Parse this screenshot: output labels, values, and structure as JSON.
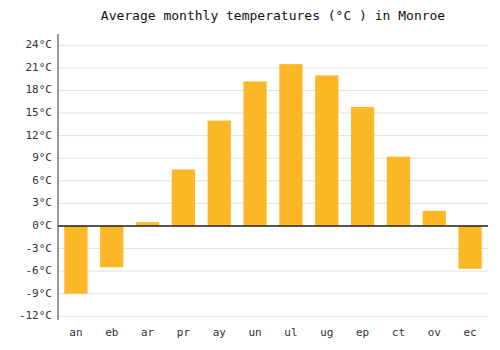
{
  "chart_data": {
    "type": "bar",
    "title": "Average monthly temperatures (°C ) in Monroe",
    "categories": [
      "an",
      "eb",
      "ar",
      "pr",
      "ay",
      "un",
      "ul",
      "ug",
      "ep",
      "ct",
      "ov",
      "ec"
    ],
    "values": [
      -9,
      -5.5,
      0.5,
      7.5,
      14,
      19.2,
      21.5,
      20,
      15.8,
      9.2,
      2,
      -5.7
    ],
    "color": "#FDB827",
    "ylim": [
      -12.5,
      25.5
    ],
    "yticks": [
      {
        "value": -12,
        "label": "-12°C"
      },
      {
        "value": -9,
        "label": "-9°C"
      },
      {
        "value": -6,
        "label": "-6°C"
      },
      {
        "value": -3,
        "label": "-3°C"
      },
      {
        "value": 0,
        "label": "0°C"
      },
      {
        "value": 3,
        "label": "3°C"
      },
      {
        "value": 6,
        "label": "6°C"
      },
      {
        "value": 9,
        "label": "9°C"
      },
      {
        "value": 12,
        "label": "12°C"
      },
      {
        "value": 15,
        "label": "15°C"
      },
      {
        "value": 18,
        "label": "18°C"
      },
      {
        "value": 21,
        "label": "21°C"
      },
      {
        "value": 24,
        "label": "24°C"
      }
    ],
    "grid": true
  }
}
